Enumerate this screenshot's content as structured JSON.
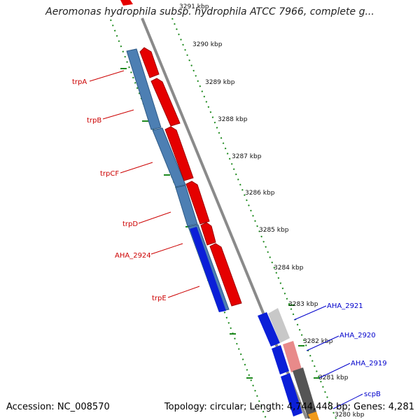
{
  "title": "Aeromonas hydrophila subsp. hydrophila ATCC 7966, complete g...",
  "footer": {
    "accession": "Accession: NC_008570",
    "stats": "Topology: circular; Length: 4,744,448 bp; Genes: 4,281"
  },
  "colors": {
    "backbone": "#8c8c8c",
    "tick": "#1f8a1f",
    "label_red": "#cc0000",
    "label_blue": "#0000cc",
    "gene_red": "#e50000",
    "gene_steel": "#4d7fb3",
    "gene_blue": "#0b1fd8",
    "gene_grey": "#bbbbbb",
    "gene_pink": "#e88a8a",
    "gene_darkgrey": "#555555",
    "gene_orange": "#f09a1a"
  },
  "ticks": [
    "3291 kbp",
    "3290 kbp",
    "3289 kbp",
    "3288 kbp",
    "3287 kbp",
    "3286 kbp",
    "3285 kbp",
    "3284 kbp",
    "3283 kbp",
    "3282 kbp",
    "3281 kbp",
    "3280 kbp"
  ],
  "genes": [
    "trpA",
    "trpB",
    "trpCF",
    "trpD",
    "AHA_2924",
    "trpE",
    "AHA_2921",
    "AHA_2920",
    "AHA_2919",
    "scpB"
  ]
}
